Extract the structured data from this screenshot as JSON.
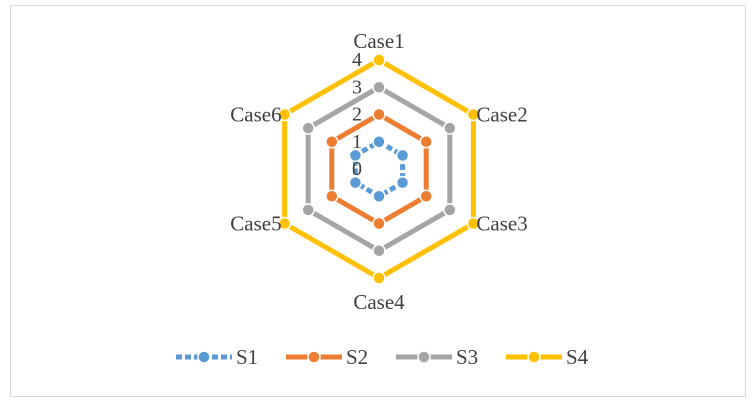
{
  "chart_data": {
    "type": "radar",
    "title": "",
    "categories": [
      "Case1",
      "Case2",
      "Case3",
      "Case4",
      "Case5",
      "Case6"
    ],
    "radial_axis": {
      "min": 0,
      "max": 4,
      "ticks": [
        "0",
        "1",
        "2",
        "3",
        "4"
      ]
    },
    "series": [
      {
        "name": "S1",
        "color": "#5b9bd5",
        "dashed": true,
        "values": [
          1,
          1,
          1,
          1,
          1,
          1
        ]
      },
      {
        "name": "S2",
        "color": "#ed7d31",
        "dashed": false,
        "values": [
          2,
          2,
          2,
          2,
          2,
          2
        ]
      },
      {
        "name": "S3",
        "color": "#a5a5a5",
        "dashed": false,
        "values": [
          3,
          3,
          3,
          3,
          3,
          3
        ]
      },
      {
        "name": "S4",
        "color": "#ffc000",
        "dashed": false,
        "values": [
          4,
          4,
          4,
          4,
          4,
          4
        ]
      }
    ],
    "legend_position": "bottom",
    "grid": false
  }
}
